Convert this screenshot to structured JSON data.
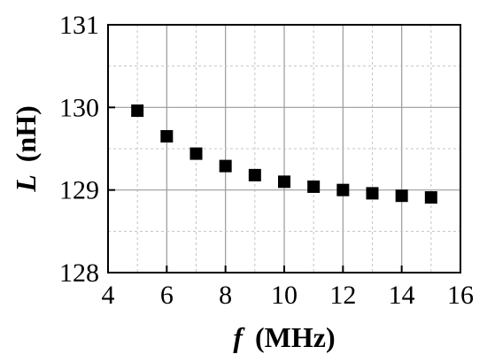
{
  "chart_data": {
    "type": "scatter",
    "title": "",
    "xlabel": {
      "symbol": "f",
      "unit": "(MHz)"
    },
    "ylabel": {
      "symbol": "L",
      "unit": "(nH)"
    },
    "xlim": [
      4,
      16
    ],
    "ylim": [
      128,
      131
    ],
    "x_ticks": [
      4,
      6,
      8,
      10,
      12,
      14,
      16
    ],
    "y_ticks": [
      128,
      129,
      130,
      131
    ],
    "x_minor_step": 1,
    "y_minor_step": 0.5,
    "grid": true,
    "marker": "square",
    "marker_color": "#000000",
    "series": [
      {
        "x": [
          5,
          6,
          7,
          8,
          9,
          10,
          11,
          12,
          13,
          14,
          15
        ],
        "y": [
          129.96,
          129.65,
          129.44,
          129.29,
          129.18,
          129.1,
          129.04,
          129.0,
          128.96,
          128.93,
          128.91
        ]
      }
    ]
  }
}
